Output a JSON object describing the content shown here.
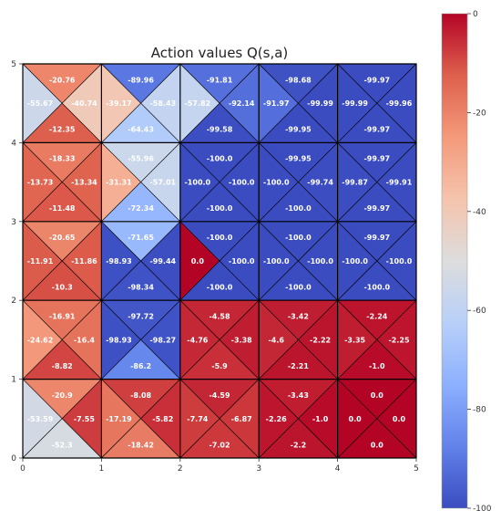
{
  "chart_data": {
    "type": "heatmap",
    "title": "Action values Q(s,a)",
    "x_ticks": [
      "0",
      "1",
      "2",
      "3",
      "4",
      "5"
    ],
    "y_ticks": [
      "0",
      "1",
      "2",
      "3",
      "4",
      "5"
    ],
    "xlim": [
      0,
      5
    ],
    "ylim": [
      0,
      5
    ],
    "grid": true,
    "colormap": "coolwarm",
    "colorbar": {
      "min": -100,
      "max": 0,
      "ticks": [
        "0",
        "-20",
        "-40",
        "-60",
        "-80",
        "-100"
      ],
      "placement": "right"
    },
    "triangle_order": [
      "up",
      "left",
      "right",
      "down"
    ],
    "cells": [
      {
        "x": 0,
        "y": 4,
        "up": "-20.76",
        "left": "-55.67",
        "right": "-40.74",
        "down": "-12.35"
      },
      {
        "x": 1,
        "y": 4,
        "up": "-89.96",
        "left": "-39.17",
        "right": "-58.43",
        "down": "-64.43"
      },
      {
        "x": 2,
        "y": 4,
        "up": "-91.81",
        "left": "-57.82",
        "right": "-92.14",
        "down": "-99.58"
      },
      {
        "x": 3,
        "y": 4,
        "up": "-98.68",
        "left": "-91.97",
        "right": "-99.99",
        "down": "-99.95"
      },
      {
        "x": 4,
        "y": 4,
        "up": "-99.97",
        "left": "-99.99",
        "right": "-99.96",
        "down": "-99.97"
      },
      {
        "x": 0,
        "y": 3,
        "up": "-18.33",
        "left": "-13.73",
        "right": "-13.34",
        "down": "-11.48"
      },
      {
        "x": 1,
        "y": 3,
        "up": "-55.96",
        "left": "-31.31",
        "right": "-57.01",
        "down": "-72.34"
      },
      {
        "x": 2,
        "y": 3,
        "up": "-100.0",
        "left": "-100.0",
        "right": "-100.0",
        "down": "-100.0"
      },
      {
        "x": 3,
        "y": 3,
        "up": "-99.95",
        "left": "-100.0",
        "right": "-99.74",
        "down": "-100.0"
      },
      {
        "x": 4,
        "y": 3,
        "up": "-99.97",
        "left": "-99.87",
        "right": "-99.91",
        "down": "-99.97"
      },
      {
        "x": 0,
        "y": 2,
        "up": "-20.65",
        "left": "-11.91",
        "right": "-11.86",
        "down": "-10.3"
      },
      {
        "x": 1,
        "y": 2,
        "up": "-71.65",
        "left": "-98.93",
        "right": "-99.44",
        "down": "-98.34"
      },
      {
        "x": 2,
        "y": 2,
        "up": "-100.0",
        "left": "0.0",
        "right": "-100.0",
        "down": "-100.0"
      },
      {
        "x": 3,
        "y": 2,
        "up": "-100.0",
        "left": "-100.0",
        "right": "-100.0",
        "down": "-100.0"
      },
      {
        "x": 4,
        "y": 2,
        "up": "-99.97",
        "left": "-100.0",
        "right": "-100.0",
        "down": "-100.0"
      },
      {
        "x": 0,
        "y": 1,
        "up": "-16.91",
        "left": "-24.62",
        "right": "-16.4",
        "down": "-8.82"
      },
      {
        "x": 1,
        "y": 1,
        "up": "-97.72",
        "left": "-98.93",
        "right": "-98.27",
        "down": "-86.2"
      },
      {
        "x": 2,
        "y": 1,
        "up": "-4.58",
        "left": "-4.76",
        "right": "-3.38",
        "down": "-5.9"
      },
      {
        "x": 3,
        "y": 1,
        "up": "-3.42",
        "left": "-4.6",
        "right": "-2.22",
        "down": "-2.21"
      },
      {
        "x": 4,
        "y": 1,
        "up": "-2.24",
        "left": "-3.35",
        "right": "-2.25",
        "down": "-1.0"
      },
      {
        "x": 0,
        "y": 0,
        "up": "-20.9",
        "left": "-53.59",
        "right": "-7.55",
        "down": "-52.3"
      },
      {
        "x": 1,
        "y": 0,
        "up": "-8.08",
        "left": "-17.19",
        "right": "-5.82",
        "down": "-18.42"
      },
      {
        "x": 2,
        "y": 0,
        "up": "-4.59",
        "left": "-7.74",
        "right": "-6.87",
        "down": "-7.02"
      },
      {
        "x": 3,
        "y": 0,
        "up": "-3.43",
        "left": "-2.26",
        "right": "-1.0",
        "down": "-2.2"
      },
      {
        "x": 4,
        "y": 0,
        "up": "0.0",
        "left": "0.0",
        "right": "0.0",
        "down": "0.0"
      }
    ]
  }
}
